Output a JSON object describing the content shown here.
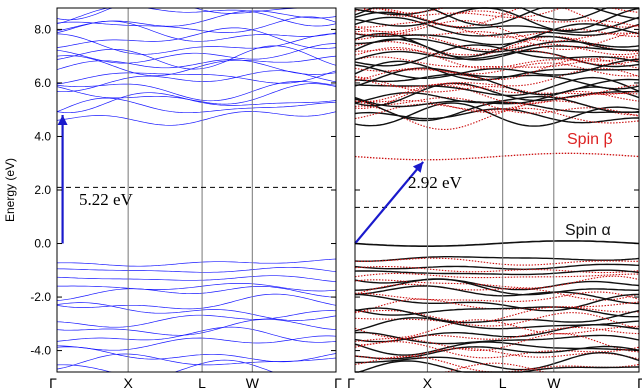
{
  "chart_data": [
    {
      "type": "line",
      "panel": "left",
      "ylabel": "Energy (eV)",
      "ylim": [
        -4.8,
        8.8
      ],
      "yticks": [
        {
          "value": 8,
          "label": "8.0"
        },
        {
          "value": 6,
          "label": "6.0"
        },
        {
          "value": 4,
          "label": "4.0"
        },
        {
          "value": 2,
          "label": "2.0"
        },
        {
          "value": 0,
          "label": "0.0"
        },
        {
          "value": -2,
          "label": "-2.0"
        },
        {
          "value": -4,
          "label": "-4.0"
        }
      ],
      "kpath": [
        "Γ",
        "X",
        "L",
        "W",
        "Γ"
      ],
      "kpositions": [
        0,
        0.255,
        0.52,
        0.7,
        1
      ],
      "fermi_level": 2.1,
      "band_color": "#1a1aff",
      "arrow_color": "#1a1acc",
      "arrow": {
        "from": [
          0.02,
          0.0
        ],
        "to": [
          0.02,
          4.8
        ]
      },
      "gap_annotation": "5.22 eV",
      "valence_bands": {
        "count": 14,
        "top": -0.7,
        "bottom": -4.7
      },
      "conduction_bands": {
        "count": 18,
        "bottom": 4.85,
        "top": 8.8
      }
    },
    {
      "type": "line",
      "panel": "right",
      "ylim": [
        -4.8,
        8.8
      ],
      "kpath": [
        "Γ",
        "X",
        "L",
        "W",
        "Γ"
      ],
      "kpositions": [
        0,
        0.255,
        0.52,
        0.7,
        1
      ],
      "fermi_level": 1.35,
      "spin_alpha_color": "#111111",
      "spin_beta_color": "#cc1111",
      "arrow_color": "#1a1acc",
      "arrow": {
        "from": [
          0.0,
          0.0
        ],
        "to": [
          0.24,
          3.05
        ]
      },
      "gap_annotation": "2.92 eV",
      "legend": [
        {
          "label": "Spin β",
          "color": "#dd2222"
        },
        {
          "label": "Spin α",
          "color": "#111111"
        }
      ],
      "spin_alpha_top_band": 0.0,
      "spin_beta_gap_band": 3.25,
      "valence_bands": {
        "count": 16,
        "top": -0.55,
        "bottom": -4.7
      },
      "conduction_bands": {
        "count": 22,
        "bottom": 4.6,
        "top": 8.8
      }
    }
  ]
}
